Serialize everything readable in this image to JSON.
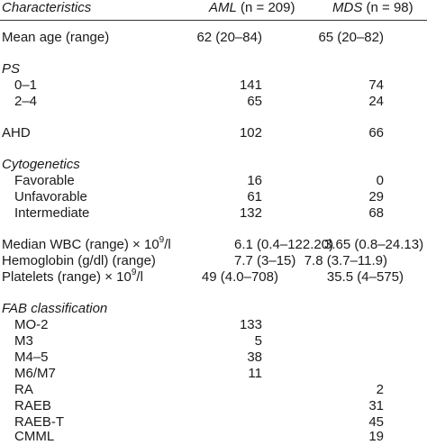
{
  "header": {
    "characteristics": "Characteristics",
    "aml_name": "AML",
    "aml_n": " (n = 209)",
    "mds_name": "MDS",
    "mds_n": " (n = 98)"
  },
  "rows": {
    "mean_age": {
      "label": "Mean age (range)",
      "aml": "62 (20–84)",
      "mds": "65 (20–82)"
    },
    "ps": {
      "label": "PS"
    },
    "ps_0_1": {
      "label": "0–1",
      "aml": "141",
      "mds": "74"
    },
    "ps_2_4": {
      "label": "2–4",
      "aml": "65",
      "mds": "24"
    },
    "ahd": {
      "label": "AHD",
      "aml": "102",
      "mds": "66"
    },
    "cytogenetics": {
      "label": "Cytogenetics"
    },
    "favorable": {
      "label": "Favorable",
      "aml": "16",
      "mds": "0"
    },
    "unfavorable": {
      "label": "Unfavorable",
      "aml": "61",
      "mds": "29"
    },
    "intermediate": {
      "label": "Intermediate",
      "aml": "132",
      "mds": "68"
    },
    "wbc": {
      "label_pre": "Median WBC (range) × 10",
      "label_sup": "9",
      "label_post": "/l",
      "aml": "6.1 (0.4–122.20)",
      "mds": "3.65 (0.8–24.13)"
    },
    "hemoglobin": {
      "label": "Hemoglobin (g/dl) (range)",
      "aml": "7.7 (3–15)",
      "mds": "7.8 (3.7–11.9)"
    },
    "platelets": {
      "label_pre": "Platelets (range) × 10",
      "label_sup": "9",
      "label_post": "/l",
      "aml": "49 (4.0–708)",
      "mds": "35.5 (4–575)"
    },
    "fab": {
      "label": "FAB classification"
    },
    "mo2": {
      "label": "MO-2",
      "aml": "133"
    },
    "m3": {
      "label": "M3",
      "aml": "5"
    },
    "m45": {
      "label": "M4–5",
      "aml": "38"
    },
    "m6m7": {
      "label": "M6/M7",
      "aml": "11"
    },
    "ra": {
      "label": "RA",
      "mds": "2"
    },
    "raeb": {
      "label": "RAEB",
      "mds": "31"
    },
    "raebt": {
      "label": "RAEB-T",
      "mds": "45"
    },
    "cmml": {
      "label": "CMML",
      "mds": "19"
    }
  }
}
